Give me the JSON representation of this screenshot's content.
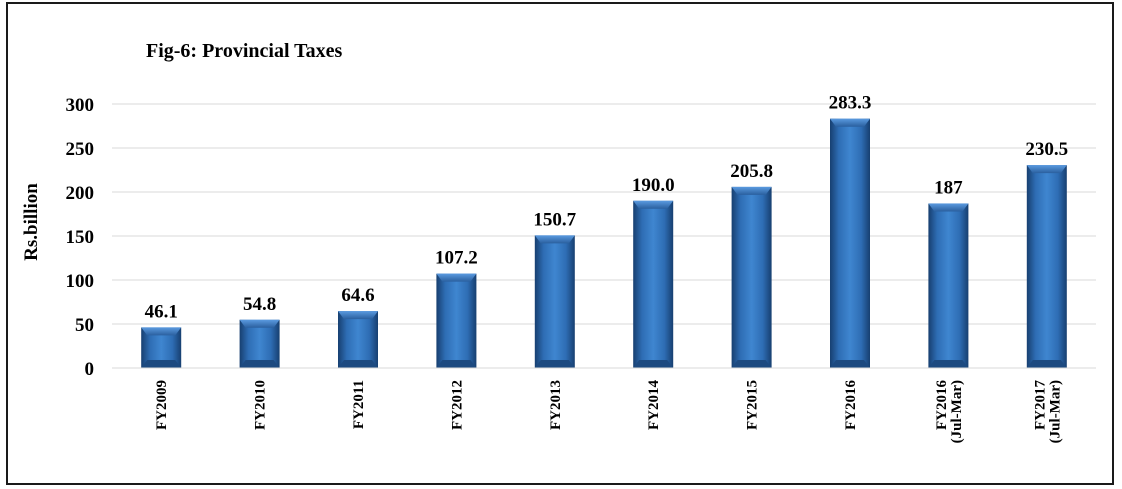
{
  "chart_data": {
    "type": "bar",
    "title": "Fig-6: Provincial Taxes",
    "ylabel": "Rs.billion",
    "xlabel": "",
    "ylim": [
      0,
      300
    ],
    "yticks": [
      0,
      50,
      100,
      150,
      200,
      250,
      300
    ],
    "grid": true,
    "categories": [
      [
        "FY2009"
      ],
      [
        "FY2010"
      ],
      [
        "FY2011"
      ],
      [
        "FY2012"
      ],
      [
        "FY2013"
      ],
      [
        "FY2014"
      ],
      [
        "FY2015"
      ],
      [
        "FY2016"
      ],
      [
        "FY2016",
        "(Jul-Mar)"
      ],
      [
        "FY2017",
        "(Jul-Mar)"
      ]
    ],
    "values": [
      46.1,
      54.8,
      64.6,
      107.2,
      150.7,
      190.0,
      205.8,
      283.3,
      187,
      230.5
    ],
    "value_labels": [
      "46.1",
      "54.8",
      "64.6",
      "107.2",
      "150.7",
      "190.0",
      "205.8",
      "283.3",
      "187",
      "230.5"
    ],
    "bar_color": "#2e6db4"
  }
}
